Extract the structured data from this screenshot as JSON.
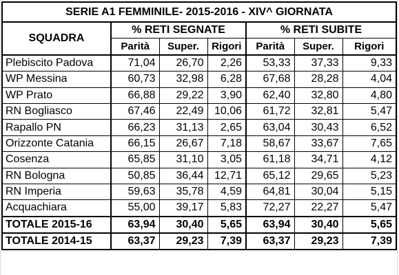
{
  "table": {
    "title": "SERIE A1 FEMMINILE- 2015-2016 - XIV^ GIORNATA",
    "header_squadra": "SQUADRA",
    "group_segnate": "% RETI SEGNATE",
    "group_subite": "% RETI SUBITE",
    "col_parita": "Parità",
    "col_super": "Super.",
    "col_rigori": "Rigori",
    "rows": [
      {
        "team": "Plebiscito Padova",
        "seg_par": "71,04",
        "seg_sup": "26,70",
        "seg_rig": "2,26",
        "sub_par": "53,33",
        "sub_sup": "37,33",
        "sub_rig": "9,33"
      },
      {
        "team": "WP Messina",
        "seg_par": "60,73",
        "seg_sup": "32,98",
        "seg_rig": "6,28",
        "sub_par": "67,68",
        "sub_sup": "28,28",
        "sub_rig": "4,04"
      },
      {
        "team": "WP Prato",
        "seg_par": "66,88",
        "seg_sup": "29,22",
        "seg_rig": "3,90",
        "sub_par": "62,40",
        "sub_sup": "32,80",
        "sub_rig": "4,80"
      },
      {
        "team": "RN Bogliasco",
        "seg_par": "67,46",
        "seg_sup": "22,49",
        "seg_rig": "10,06",
        "sub_par": "61,72",
        "sub_sup": "32,81",
        "sub_rig": "5,47"
      },
      {
        "team": "Rapallo PN",
        "seg_par": "66,23",
        "seg_sup": "31,13",
        "seg_rig": "2,65",
        "sub_par": "63,04",
        "sub_sup": "30,43",
        "sub_rig": "6,52"
      },
      {
        "team": "Orizzonte Catania",
        "seg_par": "66,15",
        "seg_sup": "26,67",
        "seg_rig": "7,18",
        "sub_par": "58,67",
        "sub_sup": "33,67",
        "sub_rig": "7,65"
      },
      {
        "team": "Cosenza",
        "seg_par": "65,85",
        "seg_sup": "31,10",
        "seg_rig": "3,05",
        "sub_par": "61,18",
        "sub_sup": "34,71",
        "sub_rig": "4,12"
      },
      {
        "team": "RN Bologna",
        "seg_par": "50,85",
        "seg_sup": "36,44",
        "seg_rig": "12,71",
        "sub_par": "65,12",
        "sub_sup": "29,65",
        "sub_rig": "5,23"
      },
      {
        "team": "RN Imperia",
        "seg_par": "59,63",
        "seg_sup": "35,78",
        "seg_rig": "4,59",
        "sub_par": "64,81",
        "sub_sup": "30,04",
        "sub_rig": "5,15"
      },
      {
        "team": "Acquachiara",
        "seg_par": "55,00",
        "seg_sup": "39,17",
        "seg_rig": "5,83",
        "sub_par": "72,27",
        "sub_sup": "22,27",
        "sub_rig": "5,47"
      }
    ],
    "totals": [
      {
        "team": "TOTALE 2015-16",
        "seg_par": "63,94",
        "seg_sup": "30,40",
        "seg_rig": "5,65",
        "sub_par": "63,94",
        "sub_sup": "30,40",
        "sub_rig": "5,65"
      },
      {
        "team": "TOTALE 2014-15",
        "seg_par": "63,37",
        "seg_sup": "29,23",
        "seg_rig": "7,39",
        "sub_par": "63,37",
        "sub_sup": "29,23",
        "sub_rig": "7,39"
      }
    ]
  }
}
